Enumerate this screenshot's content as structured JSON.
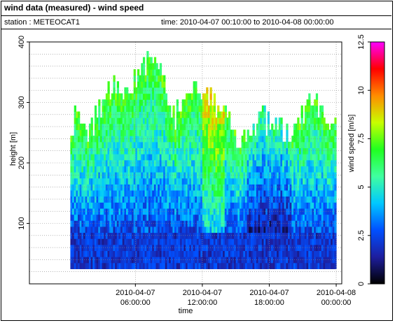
{
  "header": {
    "title": "wind data (measured) - wind speed",
    "station": "station : METEOCAT1",
    "time_range": "time: 2010-04-07 00:10:00 to 2010-04-08 00:00:00"
  },
  "chart_data": {
    "type": "heatmap",
    "title": "wind data (measured) - wind speed",
    "xlabel": "time",
    "ylabel": "height [m]",
    "colorbar_label": "wind speed [m/s]",
    "xlim_hours": [
      -3.5,
      24.5
    ],
    "ylim": [
      0,
      400
    ],
    "x_ticks": [
      {
        "hour": 6,
        "line1": "2010-04-07",
        "line2": "06:00:00"
      },
      {
        "hour": 12,
        "line1": "2010-04-07",
        "line2": "12:00:00"
      },
      {
        "hour": 18,
        "line1": "2010-04-07",
        "line2": "18:00:00"
      },
      {
        "hour": 24,
        "line1": "2010-04-08",
        "line2": "00:00:00"
      }
    ],
    "y_ticks": [
      100,
      200,
      300,
      400
    ],
    "colorbar_ticks": [
      0,
      2.5,
      5,
      7.5,
      10,
      12.5
    ],
    "colorbar_range": [
      0,
      12.5
    ],
    "grid": true,
    "data_time_range_hours": [
      0.1667,
      24
    ],
    "data_height_range": [
      25,
      370
    ],
    "colors": {
      "scale": [
        "#000000",
        "#1e1e9e",
        "#0050ff",
        "#00c8ff",
        "#40ffa0",
        "#20ff20",
        "#c8ff00",
        "#ff8c00",
        "#ff0000",
        "#ff00ff"
      ]
    }
  }
}
